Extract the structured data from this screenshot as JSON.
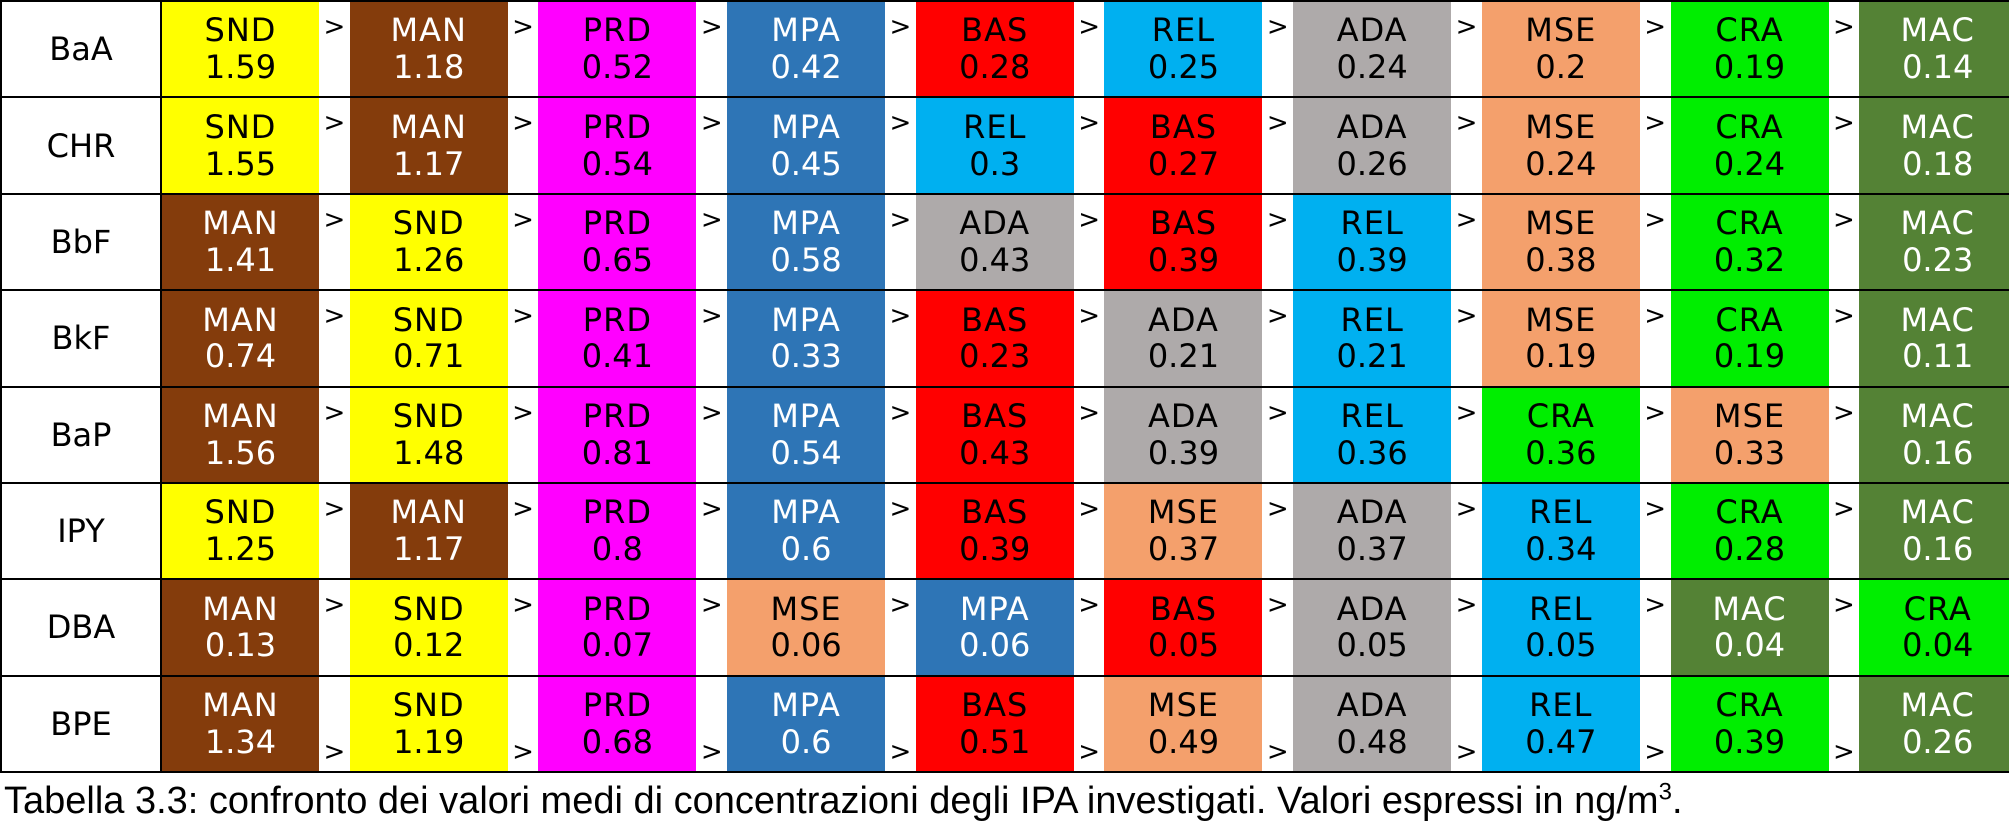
{
  "colors": {
    "SND": {
      "bg": "#ffff00",
      "fg": "#000000"
    },
    "MAN": {
      "bg": "#843c0c",
      "fg": "#ffffff"
    },
    "PRD": {
      "bg": "#ff00ff",
      "fg": "#000000"
    },
    "MPA": {
      "bg": "#2e75b6",
      "fg": "#ffffff"
    },
    "BAS": {
      "bg": "#ff0000",
      "fg": "#000000"
    },
    "REL": {
      "bg": "#00b0f0",
      "fg": "#000000"
    },
    "ADA": {
      "bg": "#aeaaaa",
      "fg": "#000000"
    },
    "MSE": {
      "bg": "#f4a06c",
      "fg": "#000000"
    },
    "CRA": {
      "bg": "#00ee00",
      "fg": "#000000"
    },
    "MAC": {
      "bg": "#548235",
      "fg": "#ffffff"
    }
  },
  "separator": ">",
  "rows": [
    {
      "label": "BaA",
      "gt_position": "middle",
      "cells": [
        {
          "code": "SND",
          "value": "1.59"
        },
        {
          "code": "MAN",
          "value": "1.18"
        },
        {
          "code": "PRD",
          "value": "0.52"
        },
        {
          "code": "MPA",
          "value": "0.42"
        },
        {
          "code": "BAS",
          "value": "0.28"
        },
        {
          "code": "REL",
          "value": "0.25"
        },
        {
          "code": "ADA",
          "value": "0.24"
        },
        {
          "code": "MSE",
          "value": "0.2"
        },
        {
          "code": "CRA",
          "value": "0.19"
        },
        {
          "code": "MAC",
          "value": "0.14"
        }
      ]
    },
    {
      "label": "CHR",
      "gt_position": "middle",
      "cells": [
        {
          "code": "SND",
          "value": "1.55"
        },
        {
          "code": "MAN",
          "value": "1.17"
        },
        {
          "code": "PRD",
          "value": "0.54"
        },
        {
          "code": "MPA",
          "value": "0.45"
        },
        {
          "code": "REL",
          "value": "0.3"
        },
        {
          "code": "BAS",
          "value": "0.27"
        },
        {
          "code": "ADA",
          "value": "0.26"
        },
        {
          "code": "MSE",
          "value": "0.24"
        },
        {
          "code": "CRA",
          "value": "0.24"
        },
        {
          "code": "MAC",
          "value": "0.18"
        }
      ]
    },
    {
      "label": "BbF",
      "gt_position": "middle",
      "cells": [
        {
          "code": "MAN",
          "value": "1.41"
        },
        {
          "code": "SND",
          "value": "1.26"
        },
        {
          "code": "PRD",
          "value": "0.65"
        },
        {
          "code": "MPA",
          "value": "0.58"
        },
        {
          "code": "ADA",
          "value": "0.43"
        },
        {
          "code": "BAS",
          "value": "0.39"
        },
        {
          "code": "REL",
          "value": "0.39"
        },
        {
          "code": "MSE",
          "value": "0.38"
        },
        {
          "code": "CRA",
          "value": "0.32"
        },
        {
          "code": "MAC",
          "value": "0.23"
        }
      ]
    },
    {
      "label": "BkF",
      "gt_position": "middle",
      "cells": [
        {
          "code": "MAN",
          "value": "0.74"
        },
        {
          "code": "SND",
          "value": "0.71"
        },
        {
          "code": "PRD",
          "value": "0.41"
        },
        {
          "code": "MPA",
          "value": "0.33"
        },
        {
          "code": "BAS",
          "value": "0.23"
        },
        {
          "code": "ADA",
          "value": "0.21"
        },
        {
          "code": "REL",
          "value": "0.21"
        },
        {
          "code": "MSE",
          "value": "0.19"
        },
        {
          "code": "CRA",
          "value": "0.19"
        },
        {
          "code": "MAC",
          "value": "0.11"
        }
      ]
    },
    {
      "label": "BaP",
      "gt_position": "middle",
      "cells": [
        {
          "code": "MAN",
          "value": "1.56"
        },
        {
          "code": "SND",
          "value": "1.48"
        },
        {
          "code": "PRD",
          "value": "0.81"
        },
        {
          "code": "MPA",
          "value": "0.54"
        },
        {
          "code": "BAS",
          "value": "0.43"
        },
        {
          "code": "ADA",
          "value": "0.39"
        },
        {
          "code": "REL",
          "value": "0.36"
        },
        {
          "code": "CRA",
          "value": "0.36"
        },
        {
          "code": "MSE",
          "value": "0.33"
        },
        {
          "code": "MAC",
          "value": "0.16"
        }
      ]
    },
    {
      "label": "IPY",
      "gt_position": "middle",
      "cells": [
        {
          "code": "SND",
          "value": "1.25"
        },
        {
          "code": "MAN",
          "value": "1.17"
        },
        {
          "code": "PRD",
          "value": "0.8"
        },
        {
          "code": "MPA",
          "value": "0.6"
        },
        {
          "code": "BAS",
          "value": "0.39"
        },
        {
          "code": "MSE",
          "value": "0.37"
        },
        {
          "code": "ADA",
          "value": "0.37"
        },
        {
          "code": "REL",
          "value": "0.34"
        },
        {
          "code": "CRA",
          "value": "0.28"
        },
        {
          "code": "MAC",
          "value": "0.16"
        }
      ]
    },
    {
      "label": "DBA",
      "gt_position": "middle",
      "cells": [
        {
          "code": "MAN",
          "value": "0.13"
        },
        {
          "code": "SND",
          "value": "0.12"
        },
        {
          "code": "PRD",
          "value": "0.07"
        },
        {
          "code": "MSE",
          "value": "0.06"
        },
        {
          "code": "MPA",
          "value": "0.06"
        },
        {
          "code": "BAS",
          "value": "0.05"
        },
        {
          "code": "ADA",
          "value": "0.05"
        },
        {
          "code": "REL",
          "value": "0.05"
        },
        {
          "code": "MAC",
          "value": "0.04"
        },
        {
          "code": "CRA",
          "value": "0.04"
        }
      ]
    },
    {
      "label": "BPE",
      "gt_position": "bottom",
      "cells": [
        {
          "code": "MAN",
          "value": "1.34"
        },
        {
          "code": "SND",
          "value": "1.19"
        },
        {
          "code": "PRD",
          "value": "0.68"
        },
        {
          "code": "MPA",
          "value": "0.6"
        },
        {
          "code": "BAS",
          "value": "0.51"
        },
        {
          "code": "MSE",
          "value": "0.49"
        },
        {
          "code": "ADA",
          "value": "0.48"
        },
        {
          "code": "REL",
          "value": "0.47"
        },
        {
          "code": "CRA",
          "value": "0.39"
        },
        {
          "code": "MAC",
          "value": "0.26"
        }
      ]
    }
  ],
  "caption": {
    "text": "Tabella 3.3: confronto dei valori  medi di concentrazioni degli IPA investigati. Valori espressi in ng/m",
    "superscript": "3",
    "suffix": "."
  }
}
